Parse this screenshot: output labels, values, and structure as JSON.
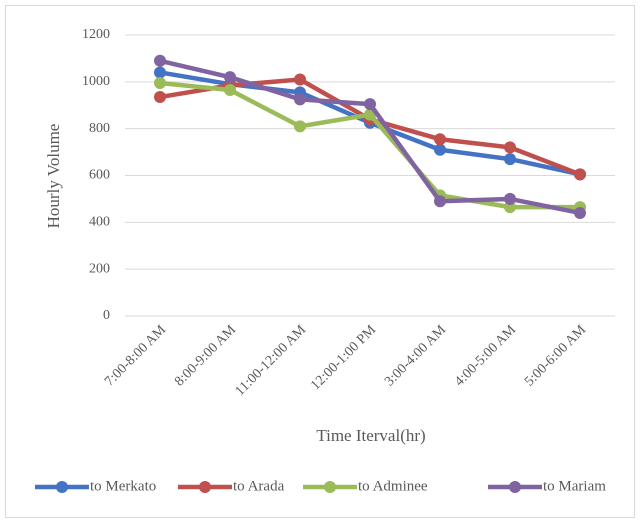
{
  "chart_data": {
    "type": "line",
    "x_label": "Time Iterval(hr)",
    "y_label": "Hourly Volume",
    "categories": [
      "7:00-8:00 AM",
      "8:00-9:00 AM",
      "11:00-12:00 AM",
      "12:00-1:00 PM",
      "3:00-4:00 AM",
      "4:00-5:00 AM",
      "5:00-6:00 AM"
    ],
    "series": [
      {
        "name": "to Merkato",
        "color": "#4472c4",
        "values": [
          1040,
          990,
          955,
          825,
          710,
          670,
          605
        ]
      },
      {
        "name": "to Arada",
        "color": "#c0504d",
        "values": [
          935,
          985,
          1010,
          840,
          755,
          720,
          605
        ]
      },
      {
        "name": "to Adminee",
        "color": "#9bbb59",
        "values": [
          995,
          965,
          810,
          860,
          515,
          465,
          465
        ]
      },
      {
        "name": "to Mariam",
        "color": "#8064a2",
        "values": [
          1090,
          1020,
          925,
          905,
          490,
          500,
          440
        ]
      }
    ],
    "ylim": [
      0,
      1200
    ],
    "yticks": [
      0,
      200,
      400,
      600,
      800,
      1000,
      1200
    ],
    "grid": true,
    "legend": "bottom"
  }
}
